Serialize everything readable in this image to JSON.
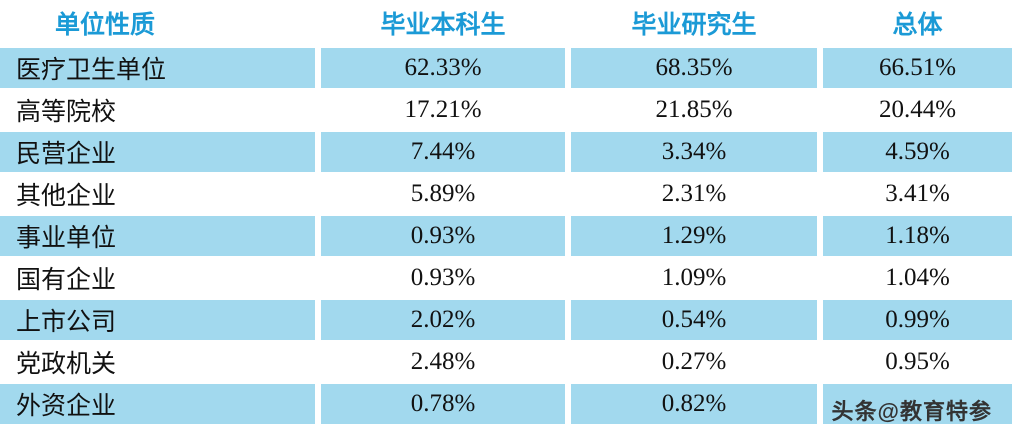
{
  "chart_data": {
    "type": "table",
    "title": "",
    "columns": [
      "单位性质",
      "毕业本科生",
      "毕业研究生",
      "总体"
    ],
    "rows": [
      [
        "医疗卫生单位",
        "62.33%",
        "68.35%",
        "66.51%"
      ],
      [
        "高等院校",
        "17.21%",
        "21.85%",
        "20.44%"
      ],
      [
        "民营企业",
        "7.44%",
        "3.34%",
        "4.59%"
      ],
      [
        "其他企业",
        "5.89%",
        "2.31%",
        "3.41%"
      ],
      [
        "事业单位",
        "0.93%",
        "1.29%",
        "1.18%"
      ],
      [
        "国有企业",
        "0.93%",
        "1.09%",
        "1.04%"
      ],
      [
        "上市公司",
        "2.02%",
        "0.54%",
        "0.99%"
      ],
      [
        "党政机关",
        "2.48%",
        "0.27%",
        "0.95%"
      ],
      [
        "外资企业",
        "0.78%",
        "0.82%",
        ""
      ]
    ],
    "layout_hints": {
      "alternating_rows": "odd data rows highlighted light blue",
      "header_style": "blue bold text on white"
    }
  },
  "watermark": "头条@教育特参",
  "colors": {
    "header_text": "#1b9ad6",
    "row_highlight": "#a2d9ee",
    "body_text": "#111111",
    "watermark_text": "#333333",
    "background": "#ffffff"
  }
}
